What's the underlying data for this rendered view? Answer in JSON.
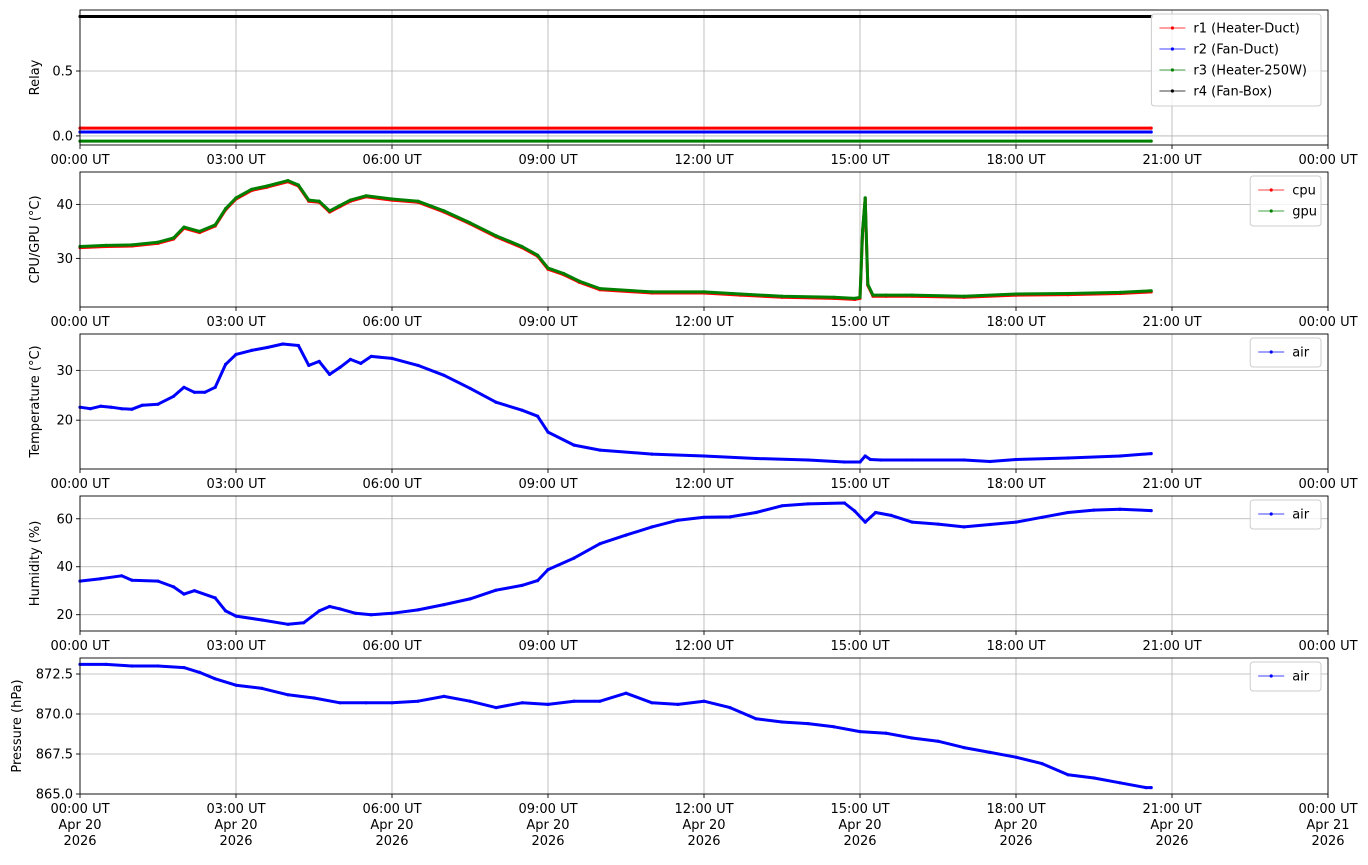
{
  "chart_data": [
    {
      "type": "line",
      "ylabel": "Relay",
      "ylim": [
        -0.07,
        0.97
      ],
      "yticks": [
        0.0,
        0.5
      ],
      "ytick_labels": [
        "0.0",
        "0.5"
      ],
      "xlim_hours": [
        0,
        24
      ],
      "xtick_labels": [
        "00:00 UT",
        "03:00 UT",
        "06:00 UT",
        "09:00 UT",
        "12:00 UT",
        "15:00 UT",
        "18:00 UT",
        "21:00 UT",
        "00:00 UT"
      ],
      "grid": true,
      "legend": "top-right",
      "series": [
        {
          "name": "r1 (Heater-Duct)",
          "color": "#ff0000",
          "x": [
            0,
            20.6
          ],
          "y": [
            0.06,
            0.06
          ]
        },
        {
          "name": "r2 (Fan-Duct)",
          "color": "#0000ff",
          "x": [
            0,
            20.6
          ],
          "y": [
            0.03,
            0.03
          ]
        },
        {
          "name": "r3 (Heater-250W)",
          "color": "#008000",
          "x": [
            0,
            20.6
          ],
          "y": [
            -0.04,
            -0.04
          ]
        },
        {
          "name": "r4 (Fan-Box)",
          "color": "#000000",
          "x": [
            0,
            20.6
          ],
          "y": [
            0.92,
            0.92
          ]
        }
      ]
    },
    {
      "type": "line",
      "ylabel": "CPU/GPU (°C)",
      "ylim": [
        21,
        46
      ],
      "yticks": [
        30,
        40
      ],
      "ytick_labels": [
        "30",
        "40"
      ],
      "xlim_hours": [
        0,
        24
      ],
      "xtick_labels": [
        "00:00 UT",
        "03:00 UT",
        "06:00 UT",
        "09:00 UT",
        "12:00 UT",
        "15:00 UT",
        "18:00 UT",
        "21:00 UT",
        "00:00 UT"
      ],
      "grid": true,
      "legend": "top-right",
      "series": [
        {
          "name": "cpu",
          "color": "#ff0000",
          "x": [
            0,
            0.5,
            1.0,
            1.5,
            1.8,
            2.0,
            2.3,
            2.6,
            2.8,
            3.0,
            3.3,
            3.6,
            4.0,
            4.2,
            4.4,
            4.6,
            4.8,
            5.0,
            5.2,
            5.5,
            6.0,
            6.5,
            7.0,
            7.5,
            8.0,
            8.5,
            8.8,
            9.0,
            9.3,
            9.6,
            10.0,
            11.0,
            12.0,
            12.7,
            13.5,
            14.5,
            14.9,
            15.0,
            15.05,
            15.1,
            15.15,
            15.25,
            15.5,
            16.0,
            17.0,
            18.0,
            19.0,
            20.0,
            20.6
          ],
          "y": [
            32.0,
            32.2,
            32.3,
            32.8,
            33.6,
            35.6,
            34.8,
            36.0,
            39.0,
            41.0,
            42.6,
            43.2,
            44.2,
            43.4,
            40.6,
            40.4,
            38.6,
            39.6,
            40.6,
            41.4,
            40.8,
            40.4,
            38.6,
            36.4,
            34.0,
            32.0,
            30.4,
            28.0,
            27.0,
            25.6,
            24.2,
            23.6,
            23.6,
            23.2,
            22.8,
            22.6,
            22.4,
            22.6,
            35.0,
            41.0,
            25.0,
            23.0,
            23.0,
            23.0,
            22.8,
            23.2,
            23.3,
            23.5,
            23.8
          ]
        },
        {
          "name": "gpu",
          "color": "#008000",
          "x": [
            0,
            0.5,
            1.0,
            1.5,
            1.8,
            2.0,
            2.3,
            2.6,
            2.8,
            3.0,
            3.3,
            3.6,
            4.0,
            4.2,
            4.4,
            4.6,
            4.8,
            5.0,
            5.2,
            5.5,
            6.0,
            6.5,
            7.0,
            7.5,
            8.0,
            8.5,
            8.8,
            9.0,
            9.3,
            9.6,
            10.0,
            11.0,
            12.0,
            12.7,
            13.5,
            14.5,
            14.9,
            15.0,
            15.05,
            15.1,
            15.15,
            15.25,
            15.5,
            16.0,
            17.0,
            18.0,
            19.0,
            20.0,
            20.6
          ],
          "y": [
            32.2,
            32.4,
            32.5,
            33.0,
            33.8,
            35.8,
            35.0,
            36.2,
            39.2,
            41.2,
            42.8,
            43.4,
            44.4,
            43.6,
            40.8,
            40.6,
            38.8,
            39.8,
            40.8,
            41.6,
            41.0,
            40.6,
            38.8,
            36.6,
            34.2,
            32.2,
            30.6,
            28.2,
            27.2,
            25.8,
            24.4,
            23.8,
            23.8,
            23.4,
            23.0,
            22.8,
            22.6,
            22.8,
            35.2,
            41.2,
            25.2,
            23.2,
            23.2,
            23.2,
            23.0,
            23.4,
            23.5,
            23.7,
            24.0
          ]
        }
      ]
    },
    {
      "type": "line",
      "ylabel": "Temperature (°C)",
      "ylim": [
        10.2,
        37.3
      ],
      "yticks": [
        20,
        30
      ],
      "ytick_labels": [
        "20",
        "30"
      ],
      "xlim_hours": [
        0,
        24
      ],
      "xtick_labels": [
        "00:00 UT",
        "03:00 UT",
        "06:00 UT",
        "09:00 UT",
        "12:00 UT",
        "15:00 UT",
        "18:00 UT",
        "21:00 UT",
        "00:00 UT"
      ],
      "grid": true,
      "legend": "top-right",
      "series": [
        {
          "name": "air",
          "color": "#0000ff",
          "x": [
            0,
            0.2,
            0.4,
            0.6,
            0.8,
            1.0,
            1.2,
            1.5,
            1.8,
            2.0,
            2.2,
            2.4,
            2.6,
            2.8,
            3.0,
            3.3,
            3.6,
            3.9,
            4.2,
            4.4,
            4.6,
            4.8,
            5.0,
            5.2,
            5.4,
            5.6,
            6.0,
            6.5,
            7.0,
            7.5,
            8.0,
            8.5,
            8.8,
            9.0,
            9.5,
            10.0,
            11.0,
            12.0,
            13.0,
            14.0,
            14.7,
            15.0,
            15.1,
            15.2,
            15.4,
            16.0,
            17.0,
            17.5,
            18.0,
            19.0,
            20.0,
            20.6
          ],
          "y": [
            22.6,
            22.3,
            22.8,
            22.6,
            22.3,
            22.2,
            23.0,
            23.2,
            24.8,
            26.6,
            25.6,
            25.6,
            26.6,
            31.2,
            33.2,
            34.0,
            34.6,
            35.3,
            35.0,
            31.0,
            31.8,
            29.2,
            30.6,
            32.2,
            31.4,
            32.8,
            32.4,
            31.0,
            29.0,
            26.4,
            23.6,
            22.0,
            20.8,
            17.6,
            15.0,
            14.0,
            13.2,
            12.8,
            12.3,
            12.0,
            11.6,
            11.6,
            12.8,
            12.1,
            12.0,
            12.0,
            12.0,
            11.7,
            12.1,
            12.4,
            12.8,
            13.3
          ]
        }
      ]
    },
    {
      "type": "line",
      "ylabel": "Humidity (%)",
      "ylim": [
        13.2,
        69.5
      ],
      "yticks": [
        20,
        40,
        60
      ],
      "ytick_labels": [
        "20",
        "40",
        "60"
      ],
      "xlim_hours": [
        0,
        24
      ],
      "xtick_labels": [
        "00:00 UT",
        "03:00 UT",
        "06:00 UT",
        "09:00 UT",
        "12:00 UT",
        "15:00 UT",
        "18:00 UT",
        "21:00 UT",
        "00:00 UT"
      ],
      "grid": true,
      "legend": "top-right",
      "series": [
        {
          "name": "air",
          "color": "#0000ff",
          "x": [
            0,
            0.4,
            0.8,
            1.0,
            1.5,
            1.8,
            2.0,
            2.2,
            2.6,
            2.8,
            3.0,
            3.5,
            4.0,
            4.3,
            4.6,
            4.8,
            5.0,
            5.3,
            5.6,
            6.0,
            6.5,
            7.0,
            7.5,
            8.0,
            8.5,
            8.8,
            9.0,
            9.5,
            10.0,
            10.5,
            11.0,
            11.5,
            12.0,
            12.5,
            13.0,
            13.5,
            14.0,
            14.7,
            14.9,
            15.1,
            15.3,
            15.6,
            16.0,
            16.5,
            17.0,
            17.5,
            18.0,
            18.5,
            19.0,
            19.5,
            20.0,
            20.6
          ],
          "y": [
            34.0,
            35.0,
            36.2,
            34.4,
            34.0,
            31.6,
            28.6,
            30.0,
            27.0,
            21.6,
            19.4,
            17.8,
            16.0,
            16.6,
            21.6,
            23.4,
            22.4,
            20.6,
            20.0,
            20.6,
            22.0,
            24.2,
            26.6,
            30.2,
            32.2,
            34.2,
            38.8,
            43.6,
            49.6,
            53.2,
            56.6,
            59.4,
            60.6,
            60.8,
            62.6,
            65.4,
            66.2,
            66.6,
            63.2,
            58.6,
            62.6,
            61.4,
            58.6,
            57.8,
            56.6,
            57.6,
            58.6,
            60.6,
            62.6,
            63.6,
            64.0,
            63.4
          ]
        }
      ]
    },
    {
      "type": "line",
      "ylabel": "Pressure (hPa)",
      "ylim": [
        865.0,
        873.5
      ],
      "yticks": [
        865.0,
        867.5,
        870.0,
        872.5
      ],
      "ytick_labels": [
        "865.0",
        "867.5",
        "870.0",
        "872.5"
      ],
      "xlim_hours": [
        0,
        24
      ],
      "xtick_labels": [
        "00:00 UT\nApr 20\n2026",
        "03:00 UT\nApr 20\n2026",
        "06:00 UT\nApr 20\n2026",
        "09:00 UT\nApr 20\n2026",
        "12:00 UT\nApr 20\n2026",
        "15:00 UT\nApr 20\n2026",
        "18:00 UT\nApr 20\n2026",
        "21:00 UT\nApr 20\n2026",
        "00:00 UT\nApr 21\n2026"
      ],
      "grid": true,
      "legend": "top-right",
      "series": [
        {
          "name": "air",
          "color": "#0000ff",
          "x": [
            0,
            0.5,
            1.0,
            1.5,
            2.0,
            2.3,
            2.6,
            3.0,
            3.5,
            4.0,
            4.5,
            5.0,
            5.5,
            6.0,
            6.5,
            7.0,
            7.5,
            8.0,
            8.5,
            9.0,
            9.5,
            10.0,
            10.5,
            11.0,
            11.5,
            12.0,
            12.5,
            13.0,
            13.5,
            14.0,
            14.5,
            15.0,
            15.5,
            16.0,
            16.5,
            17.0,
            17.5,
            18.0,
            18.5,
            19.0,
            19.5,
            20.0,
            20.5,
            20.6
          ],
          "y": [
            873.1,
            873.1,
            873.0,
            873.0,
            872.9,
            872.6,
            872.2,
            871.8,
            871.6,
            871.2,
            871.0,
            870.7,
            870.7,
            870.7,
            870.8,
            871.1,
            870.8,
            870.4,
            870.7,
            870.6,
            870.8,
            870.8,
            871.3,
            870.7,
            870.6,
            870.8,
            870.4,
            869.7,
            869.5,
            869.4,
            869.2,
            868.9,
            868.8,
            868.5,
            868.3,
            867.9,
            867.6,
            867.3,
            866.9,
            866.2,
            866.0,
            865.7,
            865.4,
            865.4
          ]
        }
      ]
    }
  ]
}
